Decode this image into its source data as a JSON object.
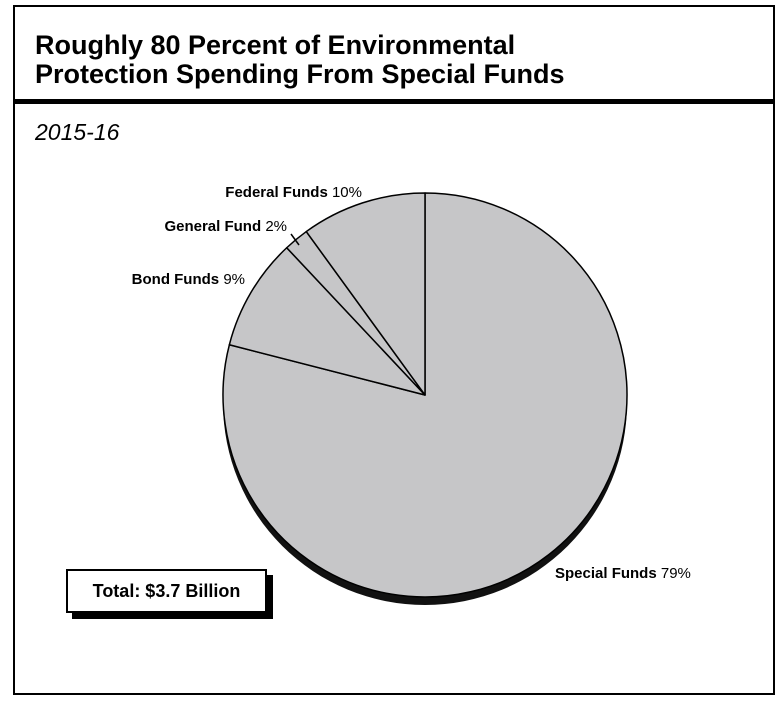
{
  "title_lines": [
    "Roughly 80 Percent of Environmental",
    "Protection Spending From Special Funds"
  ],
  "subtitle": "2015-16",
  "total_label": "Total: $3.7 Billion",
  "colors": {
    "slice": "#c6c6c8",
    "edge": "#000000",
    "depth": "#111111"
  },
  "chart_data": {
    "type": "pie",
    "title": "Roughly 80 Percent of Environmental Protection Spending From Special Funds",
    "subtitle": "2015-16",
    "slices": [
      {
        "name": "Special Funds",
        "value": 79,
        "display": "79%"
      },
      {
        "name": "Bond Funds",
        "value": 9,
        "display": "9%"
      },
      {
        "name": "General Fund",
        "value": 2,
        "display": "2%"
      },
      {
        "name": "Federal Funds",
        "value": 10,
        "display": "10%"
      }
    ],
    "start_angle_deg": 0,
    "direction": "clockwise",
    "style": "3d"
  }
}
